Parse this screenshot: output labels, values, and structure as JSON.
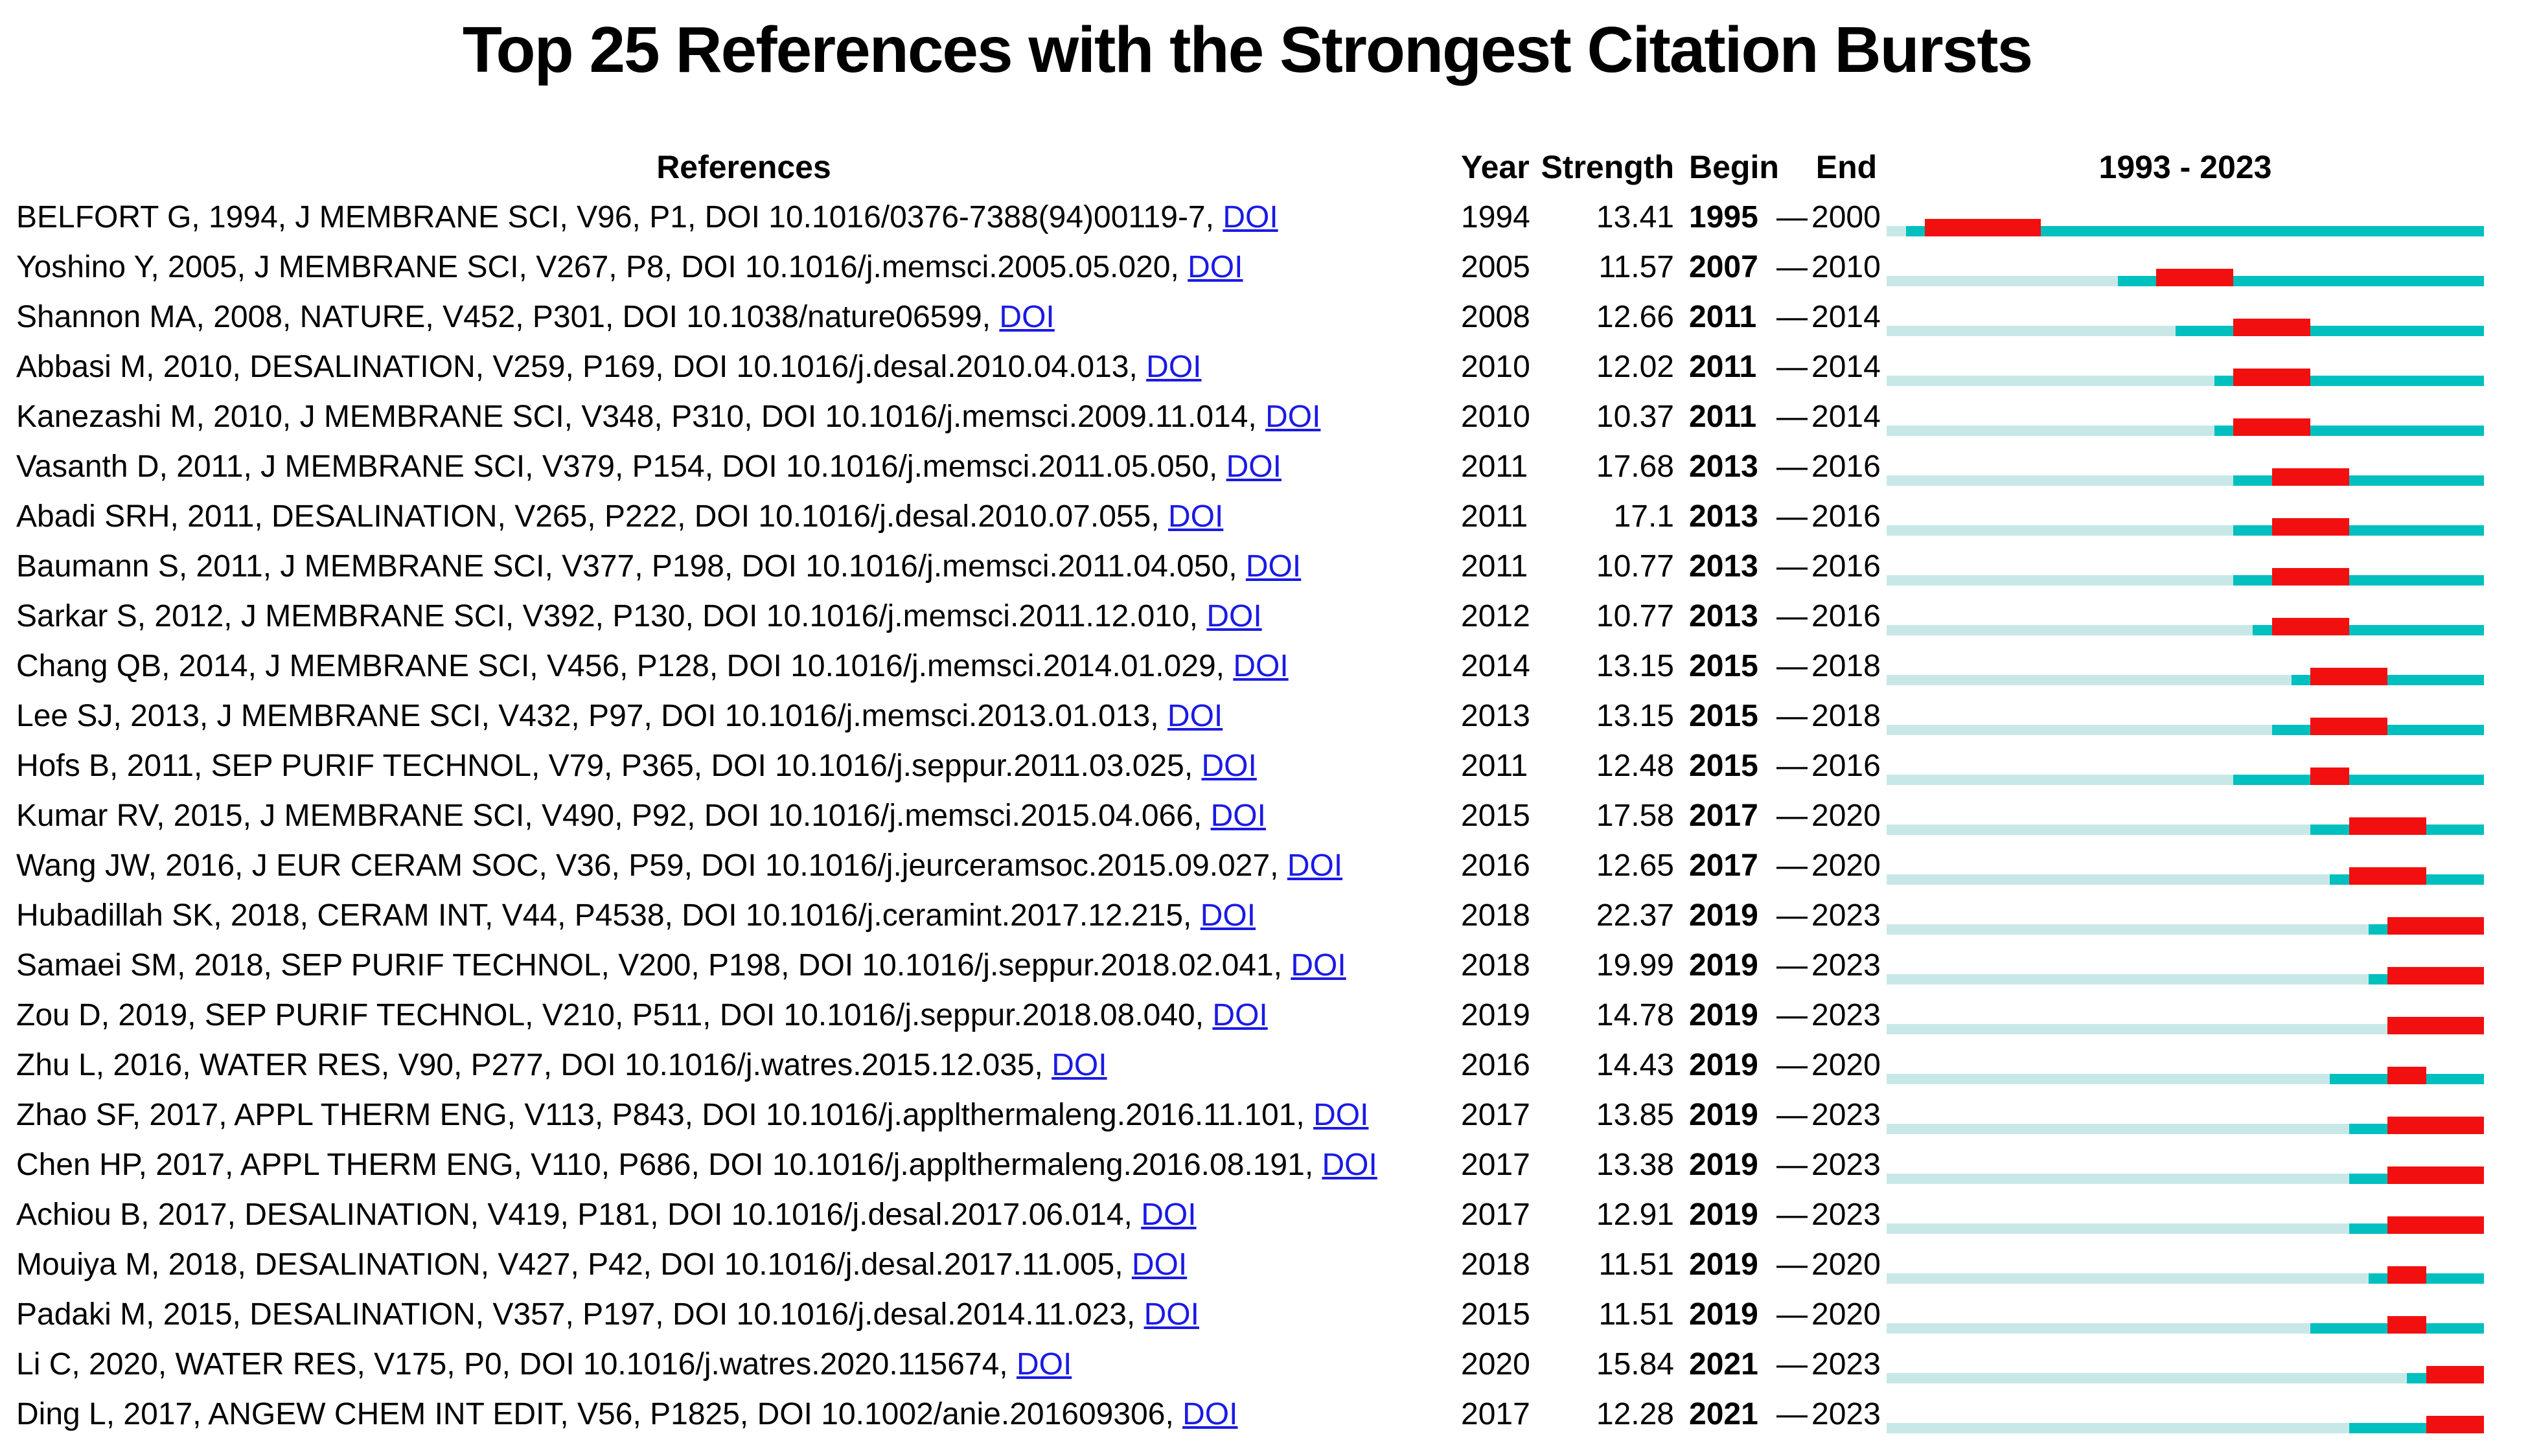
{
  "chart_data": {
    "type": "table",
    "title": "Top 25 References with the Strongest Citation Bursts",
    "headers": {
      "references": "References",
      "year": "Year",
      "strength": "Strength",
      "begin": "Begin",
      "end": "End",
      "timeline": "1993 - 2023"
    },
    "dash": "—",
    "timeline": {
      "start": 1993,
      "end": 2023
    },
    "colors": {
      "burst": "#f20f0f",
      "active_line": "#00bfbf",
      "pre_publication_line": "#c8e8e8",
      "doi_link": "#1a1ae6"
    },
    "legend_note": "pale segment = before publication year, dark teal = publication to burst / after burst, red = burst period",
    "rows": [
      {
        "ref": "BELFORT G, 1994, J MEMBRANE SCI, V96, P1, DOI 10.1016/0376-7388(94)00119-7,",
        "doi_label": "DOI",
        "year": 1994,
        "strength": "13.41",
        "begin": 1995,
        "end": 2000
      },
      {
        "ref": "Yoshino Y, 2005, J MEMBRANE SCI, V267, P8, DOI 10.1016/j.memsci.2005.05.020,",
        "doi_label": "DOI",
        "year": 2005,
        "strength": "11.57",
        "begin": 2007,
        "end": 2010
      },
      {
        "ref": "Shannon MA, 2008, NATURE, V452, P301, DOI 10.1038/nature06599,",
        "doi_label": "DOI",
        "year": 2008,
        "strength": "12.66",
        "begin": 2011,
        "end": 2014
      },
      {
        "ref": "Abbasi M, 2010, DESALINATION, V259, P169, DOI 10.1016/j.desal.2010.04.013,",
        "doi_label": "DOI",
        "year": 2010,
        "strength": "12.02",
        "begin": 2011,
        "end": 2014
      },
      {
        "ref": "Kanezashi M, 2010, J MEMBRANE SCI, V348, P310, DOI 10.1016/j.memsci.2009.11.014,",
        "doi_label": "DOI",
        "year": 2010,
        "strength": "10.37",
        "begin": 2011,
        "end": 2014
      },
      {
        "ref": "Vasanth D, 2011, J MEMBRANE SCI, V379, P154, DOI 10.1016/j.memsci.2011.05.050,",
        "doi_label": "DOI",
        "year": 2011,
        "strength": "17.68",
        "begin": 2013,
        "end": 2016
      },
      {
        "ref": "Abadi SRH, 2011, DESALINATION, V265, P222, DOI 10.1016/j.desal.2010.07.055,",
        "doi_label": "DOI",
        "year": 2011,
        "strength": "17.1",
        "begin": 2013,
        "end": 2016
      },
      {
        "ref": "Baumann S, 2011, J MEMBRANE SCI, V377, P198, DOI 10.1016/j.memsci.2011.04.050,",
        "doi_label": "DOI",
        "year": 2011,
        "strength": "10.77",
        "begin": 2013,
        "end": 2016
      },
      {
        "ref": "Sarkar S, 2012, J MEMBRANE SCI, V392, P130, DOI 10.1016/j.memsci.2011.12.010,",
        "doi_label": "DOI",
        "year": 2012,
        "strength": "10.77",
        "begin": 2013,
        "end": 2016
      },
      {
        "ref": "Chang QB, 2014, J MEMBRANE SCI, V456, P128, DOI 10.1016/j.memsci.2014.01.029,",
        "doi_label": "DOI",
        "year": 2014,
        "strength": "13.15",
        "begin": 2015,
        "end": 2018
      },
      {
        "ref": "Lee SJ, 2013, J MEMBRANE SCI, V432, P97, DOI 10.1016/j.memsci.2013.01.013,",
        "doi_label": "DOI",
        "year": 2013,
        "strength": "13.15",
        "begin": 2015,
        "end": 2018
      },
      {
        "ref": "Hofs B, 2011, SEP PURIF TECHNOL, V79, P365, DOI 10.1016/j.seppur.2011.03.025,",
        "doi_label": "DOI",
        "year": 2011,
        "strength": "12.48",
        "begin": 2015,
        "end": 2016
      },
      {
        "ref": "Kumar RV, 2015, J MEMBRANE SCI, V490, P92, DOI 10.1016/j.memsci.2015.04.066,",
        "doi_label": "DOI",
        "year": 2015,
        "strength": "17.58",
        "begin": 2017,
        "end": 2020
      },
      {
        "ref": "Wang JW, 2016, J EUR CERAM SOC, V36, P59, DOI 10.1016/j.jeurceramsoc.2015.09.027,",
        "doi_label": "DOI",
        "year": 2016,
        "strength": "12.65",
        "begin": 2017,
        "end": 2020
      },
      {
        "ref": "Hubadillah SK, 2018, CERAM INT, V44, P4538, DOI 10.1016/j.ceramint.2017.12.215,",
        "doi_label": "DOI",
        "year": 2018,
        "strength": "22.37",
        "begin": 2019,
        "end": 2023
      },
      {
        "ref": "Samaei SM, 2018, SEP PURIF TECHNOL, V200, P198, DOI 10.1016/j.seppur.2018.02.041,",
        "doi_label": "DOI",
        "year": 2018,
        "strength": "19.99",
        "begin": 2019,
        "end": 2023
      },
      {
        "ref": "Zou D, 2019, SEP PURIF TECHNOL, V210, P511, DOI 10.1016/j.seppur.2018.08.040,",
        "doi_label": "DOI",
        "year": 2019,
        "strength": "14.78",
        "begin": 2019,
        "end": 2023
      },
      {
        "ref": "Zhu L, 2016, WATER RES, V90, P277, DOI 10.1016/j.watres.2015.12.035,",
        "doi_label": "DOI",
        "year": 2016,
        "strength": "14.43",
        "begin": 2019,
        "end": 2020
      },
      {
        "ref": "Zhao SF, 2017, APPL THERM ENG, V113, P843, DOI 10.1016/j.applthermaleng.2016.11.101,",
        "doi_label": "DOI",
        "year": 2017,
        "strength": "13.85",
        "begin": 2019,
        "end": 2023
      },
      {
        "ref": "Chen HP, 2017, APPL THERM ENG, V110, P686, DOI 10.1016/j.applthermaleng.2016.08.191,",
        "doi_label": "DOI",
        "year": 2017,
        "strength": "13.38",
        "begin": 2019,
        "end": 2023
      },
      {
        "ref": "Achiou B, 2017, DESALINATION, V419, P181, DOI 10.1016/j.desal.2017.06.014,",
        "doi_label": "DOI",
        "year": 2017,
        "strength": "12.91",
        "begin": 2019,
        "end": 2023
      },
      {
        "ref": "Mouiya M, 2018, DESALINATION, V427, P42, DOI 10.1016/j.desal.2017.11.005,",
        "doi_label": "DOI",
        "year": 2018,
        "strength": "11.51",
        "begin": 2019,
        "end": 2020
      },
      {
        "ref": "Padaki M, 2015, DESALINATION, V357, P197, DOI 10.1016/j.desal.2014.11.023,",
        "doi_label": "DOI",
        "year": 2015,
        "strength": "11.51",
        "begin": 2019,
        "end": 2020
      },
      {
        "ref": "Li C, 2020, WATER RES, V175, P0, DOI 10.1016/j.watres.2020.115674,",
        "doi_label": "DOI",
        "year": 2020,
        "strength": "15.84",
        "begin": 2021,
        "end": 2023
      },
      {
        "ref": "Ding L, 2017, ANGEW CHEM INT EDIT, V56, P1825, DOI 10.1002/anie.201609306,",
        "doi_label": "DOI",
        "year": 2017,
        "strength": "12.28",
        "begin": 2021,
        "end": 2023
      }
    ]
  }
}
